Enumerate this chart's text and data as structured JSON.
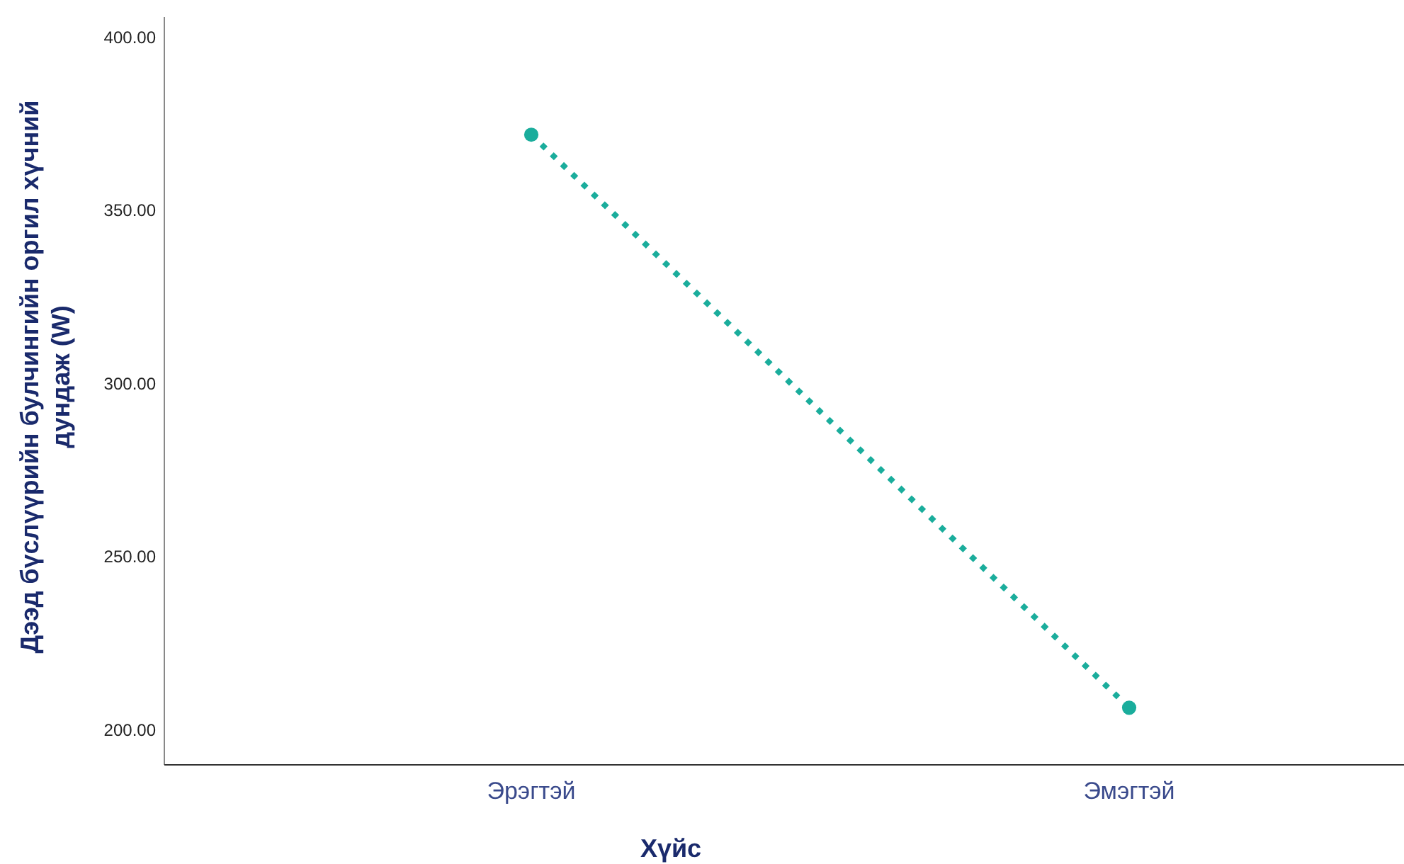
{
  "chart_data": {
    "type": "line",
    "categories": [
      "Эрэгтэй",
      "Эмэгтэй"
    ],
    "series": [
      {
        "color": "#1aad9c",
        "values": [
          372,
          206.5
        ]
      }
    ],
    "xlabel": "Хүйс",
    "ylabel": "Дээд бүслүүрийн булчингийн оргил хүчний дундаж (W)",
    "ylim": [
      190,
      406
    ],
    "yticks": [
      {
        "value": 200,
        "label": "200.00"
      },
      {
        "value": 250,
        "label": "250.00"
      },
      {
        "value": 300,
        "label": "300.00"
      },
      {
        "value": 350,
        "label": "350.00"
      },
      {
        "value": 400,
        "label": "400.00"
      }
    ],
    "grid": false,
    "marker": "circle",
    "line_style": "dotted"
  }
}
